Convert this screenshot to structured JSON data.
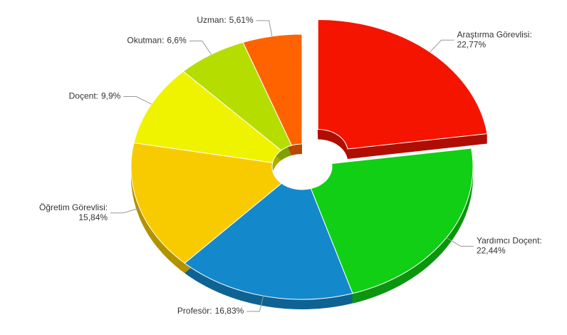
{
  "chart_data": {
    "type": "pie",
    "categories": [
      "Araştırma Görevlisi:",
      "Yardımcı Doçent:",
      "Profesör:",
      "Öğretim Görevlisi:",
      "Doçent:",
      "Okutman:",
      "Uzman:"
    ],
    "values": [
      22.77,
      22.44,
      16.83,
      15.84,
      9.9,
      6.6,
      5.61
    ],
    "value_labels": [
      "22,77%",
      "22,44%",
      "16,83%",
      "15,84%",
      "9,9%",
      "6,6%",
      "5,61%"
    ],
    "colors": [
      "#f41400",
      "#10cf14",
      "#1389cc",
      "#f8cb00",
      "#f0f300",
      "#b5dd00",
      "#ff6300"
    ],
    "exploded": [
      0
    ]
  }
}
